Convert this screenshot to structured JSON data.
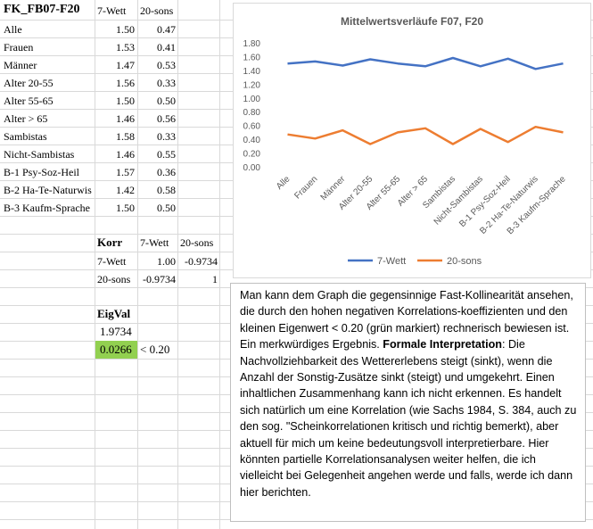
{
  "table": {
    "title": "FK_FB07-F20",
    "col1": "7-Wett",
    "col2": "20-sons",
    "rows": [
      {
        "label": "Alle",
        "a": "1.50",
        "b": "0.47"
      },
      {
        "label": "Frauen",
        "a": "1.53",
        "b": "0.41"
      },
      {
        "label": "Männer",
        "a": "1.47",
        "b": "0.53"
      },
      {
        "label": "Alter 20-55",
        "a": "1.56",
        "b": "0.33"
      },
      {
        "label": "Alter 55-65",
        "a": "1.50",
        "b": "0.50"
      },
      {
        "label": "Alter > 65",
        "a": "1.46",
        "b": "0.56"
      },
      {
        "label": "Sambistas",
        "a": "1.58",
        "b": "0.33"
      },
      {
        "label": "Nicht-Sambistas",
        "a": "1.46",
        "b": "0.55"
      },
      {
        "label": "B-1 Psy-Soz-Heil",
        "a": "1.57",
        "b": "0.36"
      },
      {
        "label": "B-2 Ha-Te-Naturwis",
        "a": "1.42",
        "b": "0.58"
      },
      {
        "label": "B-3 Kaufm-Sprache",
        "a": "1.50",
        "b": "0.50"
      }
    ]
  },
  "korr": {
    "title": "Korr",
    "col1": "7-Wett",
    "col2": "20-sons",
    "r1_label": "7-Wett",
    "r1_a": "1.00",
    "r1_b": "-0.9734",
    "r2_label": "20-sons",
    "r2_a": "-0.9734",
    "r2_b": "1"
  },
  "eig": {
    "title": "EigVal",
    "v1": "1.9734",
    "v2": "0.0266",
    "note": "< 0.20"
  },
  "chart_data": {
    "type": "line",
    "title": "Mittelwertsverläufe F07, F20",
    "categories": [
      "Alle",
      "Frauen",
      "Männer",
      "Alter 20-55",
      "Alter 55-65",
      "Alter > 65",
      "Sambistas",
      "Nicht-Sambistas",
      "B-1 Psy-Soz-Heil",
      "B-2 Ha-Te-Naturwis",
      "B-3 Kaufm-Sprache"
    ],
    "series": [
      {
        "name": "7-Wett",
        "color": "#4472c4",
        "values": [
          1.5,
          1.53,
          1.47,
          1.56,
          1.5,
          1.46,
          1.58,
          1.46,
          1.57,
          1.42,
          1.5
        ]
      },
      {
        "name": "20-sons",
        "color": "#ed7d31",
        "values": [
          0.47,
          0.41,
          0.53,
          0.33,
          0.5,
          0.56,
          0.33,
          0.55,
          0.36,
          0.58,
          0.5
        ]
      }
    ],
    "yticks": [
      "0.00",
      "0.20",
      "0.40",
      "0.60",
      "0.80",
      "1.00",
      "1.20",
      "1.40",
      "1.60",
      "1.80"
    ],
    "ylim": [
      0,
      1.8
    ],
    "grid": false,
    "legend": "bottom"
  },
  "text": {
    "p1": "Man kann dem Graph die gegensinnige Fast-Kollinearität ansehen, die durch den hohen negativen Korrelations-koeffizienten und den kleinen Eigenwert < 0.20 (grün markiert) rechnerisch bewiesen ist. Ein merkwürdiges Ergebnis. ",
    "bold": "Formale Interpretation",
    "p2": ": Die Nachvollziehbarkeit des Wettererlebens steigt (sinkt), wenn die Anzahl der Sonstig-Zusätze sinkt (steigt) und umgekehrt. Einen inhaltlichen Zusammenhang kann ich nicht erkennen. Es handelt sich natürlich um eine Korrelation (wie Sachs 1984, S. 384, auch zu den sog. \"Scheinkorrelationen kritisch und richtig bemerkt), aber aktuell für mich um keine bedeutungsvoll interpretierbare. Hier könnten partielle Korrelationsanalysen weiter helfen, die ich vielleicht bei Gelegenheit angehen werde und falls, werde ich dann hier berichten."
  }
}
